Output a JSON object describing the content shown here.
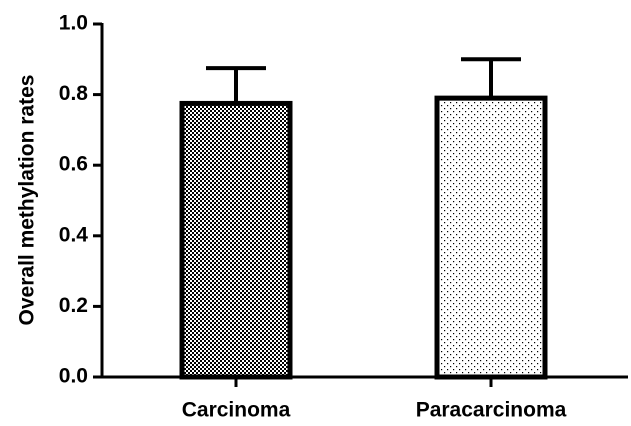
{
  "chart_data": {
    "type": "bar",
    "ylabel": "Overall methylation rates",
    "categories": [
      "Carcinoma",
      "Paracarcinoma"
    ],
    "values": [
      0.775,
      0.79
    ],
    "errors": [
      0.1,
      0.11
    ],
    "ylim": [
      0,
      1
    ],
    "yticks": [
      {
        "value": 0,
        "label": "0.0"
      },
      0.2,
      0.4,
      0.6,
      0.8,
      {
        "value": 1,
        "label": "1.0"
      }
    ]
  }
}
